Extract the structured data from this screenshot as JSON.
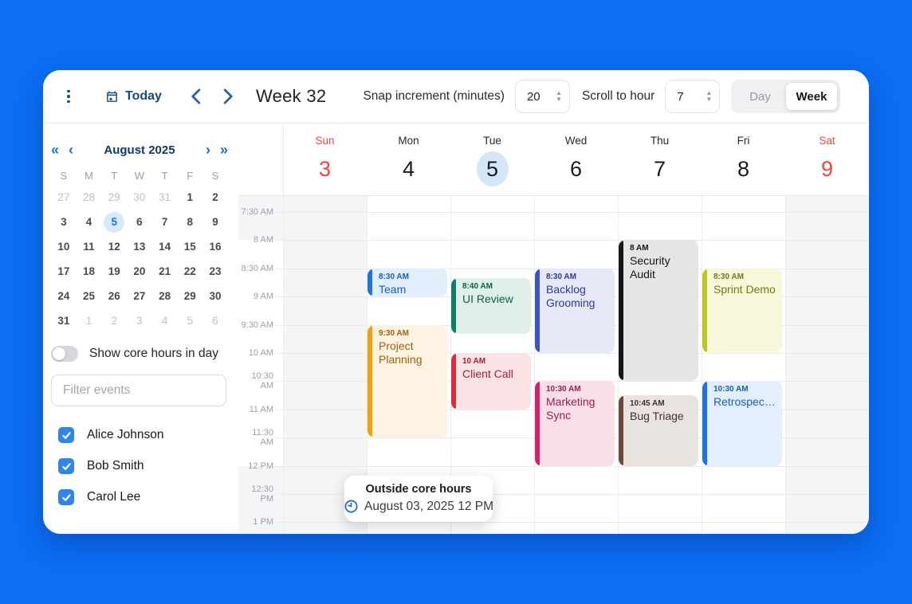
{
  "theme": {
    "page_bg": "#0b6ef5",
    "accent_blue": "#1a73e8",
    "weekend_red": "#f2453d"
  },
  "toolbar": {
    "today_label": "Today",
    "week_title": "Week 32",
    "snap_label": "Snap increment (minutes)",
    "snap_value": "20",
    "scroll_label": "Scroll to hour",
    "scroll_value": "7",
    "views": [
      "Day",
      "Week"
    ],
    "active_view": "Week"
  },
  "sidebar": {
    "mini_calendar": {
      "title": "August 2025",
      "nav_icons": {
        "prev_year": "«",
        "prev_month": "‹",
        "next_month": "›",
        "next_year": "»"
      },
      "weekday_headers": [
        "S",
        "M",
        "T",
        "W",
        "T",
        "F",
        "S"
      ],
      "weeks": [
        [
          {
            "d": "27",
            "muted": true
          },
          {
            "d": "28",
            "muted": true
          },
          {
            "d": "29",
            "muted": true
          },
          {
            "d": "30",
            "muted": true
          },
          {
            "d": "31",
            "muted": true
          },
          {
            "d": "1"
          },
          {
            "d": "2"
          }
        ],
        [
          {
            "d": "3"
          },
          {
            "d": "4"
          },
          {
            "d": "5",
            "selected": true
          },
          {
            "d": "6"
          },
          {
            "d": "7"
          },
          {
            "d": "8"
          },
          {
            "d": "9"
          }
        ],
        [
          {
            "d": "10"
          },
          {
            "d": "11"
          },
          {
            "d": "12"
          },
          {
            "d": "13"
          },
          {
            "d": "14"
          },
          {
            "d": "15"
          },
          {
            "d": "16"
          }
        ],
        [
          {
            "d": "17"
          },
          {
            "d": "18"
          },
          {
            "d": "19"
          },
          {
            "d": "20"
          },
          {
            "d": "21"
          },
          {
            "d": "22"
          },
          {
            "d": "23"
          }
        ],
        [
          {
            "d": "24"
          },
          {
            "d": "25"
          },
          {
            "d": "26"
          },
          {
            "d": "27"
          },
          {
            "d": "28"
          },
          {
            "d": "29"
          },
          {
            "d": "30"
          }
        ],
        [
          {
            "d": "31"
          },
          {
            "d": "1",
            "muted": true
          },
          {
            "d": "2",
            "muted": true
          },
          {
            "d": "3",
            "muted": true
          },
          {
            "d": "4",
            "muted": true
          },
          {
            "d": "5",
            "muted": true
          },
          {
            "d": "6",
            "muted": true
          }
        ]
      ]
    },
    "core_toggle_label": "Show core hours in day",
    "core_toggle_on": false,
    "filter_placeholder": "Filter events",
    "people": [
      {
        "name": "Alice Johnson",
        "checked": true
      },
      {
        "name": "Bob Smith",
        "checked": true
      },
      {
        "name": "Carol Lee",
        "checked": true
      }
    ]
  },
  "week_view": {
    "days": [
      {
        "name": "Sun",
        "number": "3",
        "weekend": true
      },
      {
        "name": "Mon",
        "number": "4"
      },
      {
        "name": "Tue",
        "number": "5",
        "today": true
      },
      {
        "name": "Wed",
        "number": "6"
      },
      {
        "name": "Thu",
        "number": "7"
      },
      {
        "name": "Fri",
        "number": "8"
      },
      {
        "name": "Sat",
        "number": "9",
        "weekend": true
      }
    ],
    "time_labels": [
      "7:30 AM",
      "8 AM",
      "8:30 AM",
      "9 AM",
      "9:30 AM",
      "10 AM",
      "10:30 AM",
      "11 AM",
      "11:30 AM",
      "12 PM",
      "12:30 PM",
      "1 PM"
    ],
    "core_hours": {
      "start_minutes": 480,
      "end_minutes": 720
    },
    "events": [
      {
        "day": 1,
        "start_minutes": 510,
        "end_minutes": 540,
        "time": "8:30 AM",
        "title": "Team",
        "bar": "#1a73e8",
        "bg": "#e3eefc",
        "text": "#1a5dc0"
      },
      {
        "day": 1,
        "start_minutes": 570,
        "end_minutes": 690,
        "time": "9:30 AM",
        "title": "Project Planning",
        "bar": "#f59e0b",
        "bg": "#fdf3e2",
        "text": "#a16207"
      },
      {
        "day": 2,
        "start_minutes": 520,
        "end_minutes": 580,
        "time": "8:40 AM",
        "title": "UI Review",
        "bar": "#0e7f6d",
        "bg": "#e1efe9",
        "text": "#0b5e51"
      },
      {
        "day": 2,
        "start_minutes": 600,
        "end_minutes": 660,
        "time": "10 AM",
        "title": "Client Call",
        "bar": "#df2c38",
        "bg": "#fae3e5",
        "text": "#ab1f2e"
      },
      {
        "day": 3,
        "start_minutes": 510,
        "end_minutes": 600,
        "time": "8:30 AM",
        "title": "Backlog Grooming",
        "bar": "#3d52c4",
        "bg": "#e6e8f8",
        "text": "#2b3a9e"
      },
      {
        "day": 3,
        "start_minutes": 630,
        "end_minutes": 720,
        "time": "10:30 AM",
        "title": "Marketing Sync",
        "bar": "#d61f69",
        "bg": "#fadfe9",
        "text": "#9c1c52"
      },
      {
        "day": 4,
        "start_minutes": 480,
        "end_minutes": 630,
        "time": "8 AM",
        "title": "Security Audit",
        "bar": "#17171b",
        "bg": "#e5e5e7",
        "text": "#141417"
      },
      {
        "day": 4,
        "start_minutes": 645,
        "end_minutes": 720,
        "time": "10:45 AM",
        "title": "Bug Triage",
        "bar": "#6b4a3e",
        "bg": "#eae4e1",
        "text": "#40312a"
      },
      {
        "day": 5,
        "start_minutes": 510,
        "end_minutes": 600,
        "time": "8:30 AM",
        "title": "Sprint Demo",
        "bar": "#bfc41f",
        "bg": "#f7f8db",
        "text": "#787712"
      },
      {
        "day": 5,
        "start_minutes": 630,
        "end_minutes": 720,
        "time": "10:30 AM",
        "title": "Retrospective",
        "bar": "#1a73e8",
        "bg": "#e3effd",
        "text": "#1a5dc0",
        "truncate": true
      }
    ],
    "tooltip": {
      "title": "Outside core hours",
      "text": "August 03, 2025 12 PM"
    }
  }
}
